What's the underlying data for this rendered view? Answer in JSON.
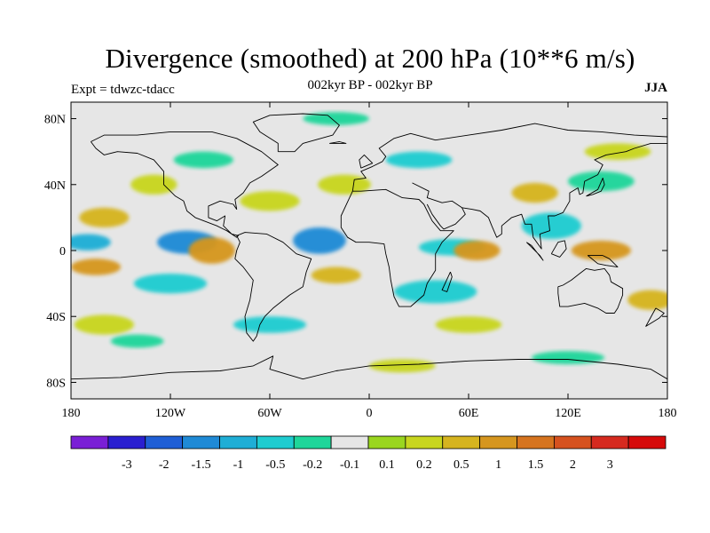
{
  "header": {
    "title": "Divergence (smoothed) at 200 hPa (10**6 m/s)",
    "subtitle": "002kyr BP - 002kyr BP",
    "experiment": "Expt = tdwzc-tdacc",
    "season": "JJA"
  },
  "axes": {
    "lat_ticks": [
      {
        "label": "80N",
        "value": 80
      },
      {
        "label": "40N",
        "value": 40
      },
      {
        "label": "0",
        "value": 0
      },
      {
        "label": "40S",
        "value": -40
      },
      {
        "label": "80S",
        "value": -80
      }
    ],
    "lon_ticks": [
      {
        "label": "180",
        "value": -180
      },
      {
        "label": "120W",
        "value": -120
      },
      {
        "label": "60W",
        "value": -60
      },
      {
        "label": "0",
        "value": 0
      },
      {
        "label": "60E",
        "value": 60
      },
      {
        "label": "120E",
        "value": 120
      },
      {
        "label": "180",
        "value": 180
      }
    ],
    "lat_range": [
      -90,
      90
    ],
    "lon_range": [
      -180,
      180
    ]
  },
  "colorbar": {
    "colors": [
      "#7a1fd6",
      "#2a1fd0",
      "#1f5fd6",
      "#1f8ad6",
      "#1faed6",
      "#1fccd0",
      "#1fd69a",
      "#e6e6e6",
      "#9ad61f",
      "#c8d61f",
      "#d6b41f",
      "#d6961f",
      "#d6741f",
      "#d6521f",
      "#d62a1f",
      "#d60a0a"
    ],
    "labels": [
      "-3",
      "-2",
      "-1.5",
      "-1",
      "-0.5",
      "-0.2",
      "-0.1",
      "0.1",
      "0.2",
      "0.5",
      "1",
      "1.5",
      "2",
      "3"
    ]
  },
  "map_data": {
    "neutral_color": "#e6e6e6",
    "blobs": [
      {
        "lon": -170,
        "lat": 5,
        "rl": 14,
        "rt": 5,
        "c": 4
      },
      {
        "lon": -110,
        "lat": 5,
        "rl": 18,
        "rt": 7,
        "c": 3
      },
      {
        "lon": -30,
        "lat": 6,
        "rl": 16,
        "rt": 8,
        "c": 3
      },
      {
        "lon": 50,
        "lat": 2,
        "rl": 20,
        "rt": 5,
        "c": 5
      },
      {
        "lon": 110,
        "lat": 15,
        "rl": 18,
        "rt": 8,
        "c": 5
      },
      {
        "lon": -120,
        "lat": -20,
        "rl": 22,
        "rt": 6,
        "c": 5
      },
      {
        "lon": 40,
        "lat": -25,
        "rl": 25,
        "rt": 7,
        "c": 5
      },
      {
        "lon": -100,
        "lat": 55,
        "rl": 18,
        "rt": 5,
        "c": 6
      },
      {
        "lon": 30,
        "lat": 55,
        "rl": 20,
        "rt": 5,
        "c": 5
      },
      {
        "lon": 140,
        "lat": 42,
        "rl": 20,
        "rt": 6,
        "c": 6
      },
      {
        "lon": -60,
        "lat": -45,
        "rl": 22,
        "rt": 5,
        "c": 5
      },
      {
        "lon": -20,
        "lat": 80,
        "rl": 20,
        "rt": 4,
        "c": 6
      },
      {
        "lon": 120,
        "lat": -65,
        "rl": 22,
        "rt": 4,
        "c": 6
      },
      {
        "lon": -140,
        "lat": -55,
        "rl": 16,
        "rt": 4,
        "c": 6
      },
      {
        "lon": -160,
        "lat": 20,
        "rl": 15,
        "rt": 6,
        "c": 10
      },
      {
        "lon": -95,
        "lat": 0,
        "rl": 14,
        "rt": 8,
        "c": 11
      },
      {
        "lon": 65,
        "lat": 0,
        "rl": 14,
        "rt": 6,
        "c": 11
      },
      {
        "lon": 140,
        "lat": 0,
        "rl": 18,
        "rt": 6,
        "c": 11
      },
      {
        "lon": -165,
        "lat": -10,
        "rl": 15,
        "rt": 5,
        "c": 11
      },
      {
        "lon": -20,
        "lat": -15,
        "rl": 15,
        "rt": 5,
        "c": 10
      },
      {
        "lon": -130,
        "lat": 40,
        "rl": 14,
        "rt": 6,
        "c": 9
      },
      {
        "lon": 150,
        "lat": 60,
        "rl": 20,
        "rt": 5,
        "c": 9
      },
      {
        "lon": -15,
        "lat": 40,
        "rl": 16,
        "rt": 6,
        "c": 9
      },
      {
        "lon": 100,
        "lat": 35,
        "rl": 14,
        "rt": 6,
        "c": 10
      },
      {
        "lon": -160,
        "lat": -45,
        "rl": 18,
        "rt": 6,
        "c": 9
      },
      {
        "lon": 60,
        "lat": -45,
        "rl": 20,
        "rt": 5,
        "c": 9
      },
      {
        "lon": 170,
        "lat": -30,
        "rl": 14,
        "rt": 6,
        "c": 10
      },
      {
        "lon": 20,
        "lat": -70,
        "rl": 20,
        "rt": 4,
        "c": 9
      },
      {
        "lon": -60,
        "lat": 30,
        "rl": 18,
        "rt": 6,
        "c": 9
      }
    ],
    "coast_polylines": [
      [
        [
          -168,
          66
        ],
        [
          -160,
          70
        ],
        [
          -140,
          70
        ],
        [
          -120,
          72
        ],
        [
          -95,
          72
        ],
        [
          -80,
          68
        ],
        [
          -65,
          60
        ],
        [
          -55,
          52
        ],
        [
          -65,
          45
        ],
        [
          -72,
          41
        ],
        [
          -76,
          35
        ],
        [
          -81,
          31
        ],
        [
          -80,
          25
        ],
        [
          -82,
          28
        ],
        [
          -90,
          30
        ],
        [
          -97,
          27
        ],
        [
          -97,
          20
        ],
        [
          -92,
          18
        ],
        [
          -87,
          21
        ],
        [
          -88,
          15
        ],
        [
          -83,
          10
        ],
        [
          -79,
          9
        ],
        [
          -80,
          8
        ],
        [
          -86,
          12
        ],
        [
          -92,
          15
        ],
        [
          -105,
          20
        ],
        [
          -110,
          24
        ],
        [
          -112,
          30
        ],
        [
          -117,
          33
        ],
        [
          -124,
          40
        ],
        [
          -124,
          48
        ],
        [
          -130,
          55
        ],
        [
          -140,
          59
        ],
        [
          -152,
          60
        ],
        [
          -160,
          58
        ],
        [
          -165,
          62
        ],
        [
          -168,
          66
        ]
      ],
      [
        [
          -80,
          9
        ],
        [
          -75,
          11
        ],
        [
          -62,
          10
        ],
        [
          -52,
          5
        ],
        [
          -44,
          -2
        ],
        [
          -35,
          -5
        ],
        [
          -38,
          -13
        ],
        [
          -40,
          -22
        ],
        [
          -48,
          -27
        ],
        [
          -58,
          -35
        ],
        [
          -63,
          -40
        ],
        [
          -66,
          -45
        ],
        [
          -68,
          -52
        ],
        [
          -70,
          -55
        ],
        [
          -74,
          -50
        ],
        [
          -75,
          -40
        ],
        [
          -72,
          -30
        ],
        [
          -70,
          -18
        ],
        [
          -76,
          -10
        ],
        [
          -81,
          -5
        ],
        [
          -80,
          0
        ],
        [
          -78,
          5
        ],
        [
          -80,
          9
        ]
      ],
      [
        [
          -10,
          36
        ],
        [
          -17,
          21
        ],
        [
          -17,
          14
        ],
        [
          -13,
          8
        ],
        [
          -8,
          5
        ],
        [
          0,
          5
        ],
        [
          9,
          4
        ],
        [
          10,
          -2
        ],
        [
          12,
          -10
        ],
        [
          13,
          -18
        ],
        [
          15,
          -28
        ],
        [
          18,
          -34
        ],
        [
          25,
          -34
        ],
        [
          33,
          -27
        ],
        [
          35,
          -20
        ],
        [
          40,
          -12
        ],
        [
          40,
          -2
        ],
        [
          44,
          5
        ],
        [
          51,
          12
        ],
        [
          43,
          12
        ],
        [
          38,
          18
        ],
        [
          33,
          28
        ],
        [
          30,
          31
        ],
        [
          20,
          32
        ],
        [
          10,
          37
        ],
        [
          -5,
          36
        ],
        [
          -10,
          36
        ]
      ],
      [
        [
          -10,
          36
        ],
        [
          -9,
          43
        ],
        [
          -2,
          44
        ],
        [
          -5,
          48
        ],
        [
          2,
          51
        ],
        [
          8,
          54
        ],
        [
          10,
          57
        ],
        [
          6,
          62
        ],
        [
          15,
          68
        ],
        [
          25,
          71
        ],
        [
          40,
          67
        ],
        [
          60,
          70
        ],
        [
          80,
          73
        ],
        [
          100,
          77
        ],
        [
          120,
          73
        ],
        [
          140,
          72
        ],
        [
          160,
          70
        ],
        [
          180,
          69
        ]
      ],
      [
        [
          26,
          41
        ],
        [
          36,
          36
        ],
        [
          35,
          32
        ],
        [
          44,
          29
        ],
        [
          50,
          30
        ],
        [
          56,
          26
        ],
        [
          58,
          22
        ],
        [
          52,
          16
        ],
        [
          45,
          13
        ],
        [
          43,
          15
        ],
        [
          38,
          22
        ],
        [
          35,
          28
        ]
      ],
      [
        [
          56,
          26
        ],
        [
          62,
          25
        ],
        [
          67,
          24
        ],
        [
          72,
          20
        ],
        [
          74,
          15
        ],
        [
          77,
          8
        ],
        [
          80,
          10
        ],
        [
          80,
          15
        ],
        [
          86,
          20
        ],
        [
          92,
          22
        ],
        [
          94,
          16
        ],
        [
          98,
          16
        ],
        [
          99,
          8
        ],
        [
          104,
          1
        ],
        [
          103,
          10
        ],
        [
          106,
          11
        ],
        [
          109,
          12
        ],
        [
          108,
          21
        ],
        [
          112,
          21
        ],
        [
          117,
          23
        ],
        [
          121,
          30
        ],
        [
          121,
          35
        ],
        [
          126,
          38
        ],
        [
          127,
          34
        ],
        [
          129,
          35
        ],
        [
          130,
          42
        ],
        [
          138,
          46
        ],
        [
          141,
          52
        ],
        [
          136,
          55
        ],
        [
          143,
          58
        ],
        [
          155,
          60
        ],
        [
          160,
          62
        ],
        [
          170,
          65
        ],
        [
          180,
          65
        ]
      ],
      [
        [
          114,
          -22
        ],
        [
          114,
          -26
        ],
        [
          115,
          -34
        ],
        [
          120,
          -34
        ],
        [
          130,
          -32
        ],
        [
          138,
          -35
        ],
        [
          143,
          -38
        ],
        [
          148,
          -38
        ],
        [
          150,
          -35
        ],
        [
          153,
          -27
        ],
        [
          153,
          -23
        ],
        [
          146,
          -19
        ],
        [
          145,
          -15
        ],
        [
          142,
          -11
        ],
        [
          136,
          -12
        ],
        [
          131,
          -11
        ],
        [
          127,
          -14
        ],
        [
          122,
          -18
        ],
        [
          117,
          -21
        ],
        [
          114,
          -22
        ]
      ],
      [
        [
          -180,
          -78
        ],
        [
          -150,
          -77
        ],
        [
          -120,
          -74
        ],
        [
          -90,
          -73
        ],
        [
          -70,
          -70
        ],
        [
          -58,
          -64
        ],
        [
          -60,
          -72
        ],
        [
          -40,
          -78
        ],
        [
          -20,
          -73
        ],
        [
          0,
          -70
        ],
        [
          30,
          -69
        ],
        [
          60,
          -67
        ],
        [
          90,
          -66
        ],
        [
          120,
          -66
        ],
        [
          150,
          -69
        ],
        [
          170,
          -72
        ],
        [
          180,
          -78
        ]
      ],
      [
        [
          -55,
          60
        ],
        [
          -45,
          60
        ],
        [
          -40,
          65
        ],
        [
          -22,
          70
        ],
        [
          -18,
          76
        ],
        [
          -25,
          82
        ],
        [
          -40,
          83
        ],
        [
          -60,
          82
        ],
        [
          -70,
          78
        ],
        [
          -66,
          72
        ],
        [
          -55,
          65
        ],
        [
          -55,
          60
        ]
      ],
      [
        [
          -5,
          50
        ],
        [
          -6,
          55
        ],
        [
          -3,
          58
        ],
        [
          2,
          53
        ],
        [
          -5,
          50
        ]
      ],
      [
        [
          95,
          5
        ],
        [
          98,
          3
        ],
        [
          105,
          -6
        ],
        [
          103,
          -3
        ],
        [
          95,
          5
        ]
      ],
      [
        [
          110,
          -2
        ],
        [
          114,
          5
        ],
        [
          118,
          6
        ],
        [
          119,
          1
        ],
        [
          115,
          -4
        ],
        [
          110,
          -2
        ]
      ],
      [
        [
          141,
          -3
        ],
        [
          145,
          -5
        ],
        [
          150,
          -10
        ],
        [
          143,
          -9
        ],
        [
          138,
          -8
        ],
        [
          132,
          -3
        ],
        [
          141,
          -3
        ]
      ],
      [
        [
          173,
          -35
        ],
        [
          178,
          -38
        ],
        [
          175,
          -41
        ],
        [
          167,
          -46
        ],
        [
          173,
          -35
        ]
      ],
      [
        [
          -24,
          65
        ],
        [
          -14,
          65
        ],
        [
          -18,
          66
        ],
        [
          -24,
          65
        ]
      ],
      [
        [
          49,
          -13
        ],
        [
          50,
          -16
        ],
        [
          47,
          -25
        ],
        [
          44,
          -24
        ],
        [
          49,
          -13
        ]
      ],
      [
        [
          131,
          33
        ],
        [
          135,
          34
        ],
        [
          140,
          36
        ],
        [
          142,
          40
        ],
        [
          141,
          44
        ],
        [
          138,
          37
        ],
        [
          131,
          33
        ]
      ]
    ]
  }
}
